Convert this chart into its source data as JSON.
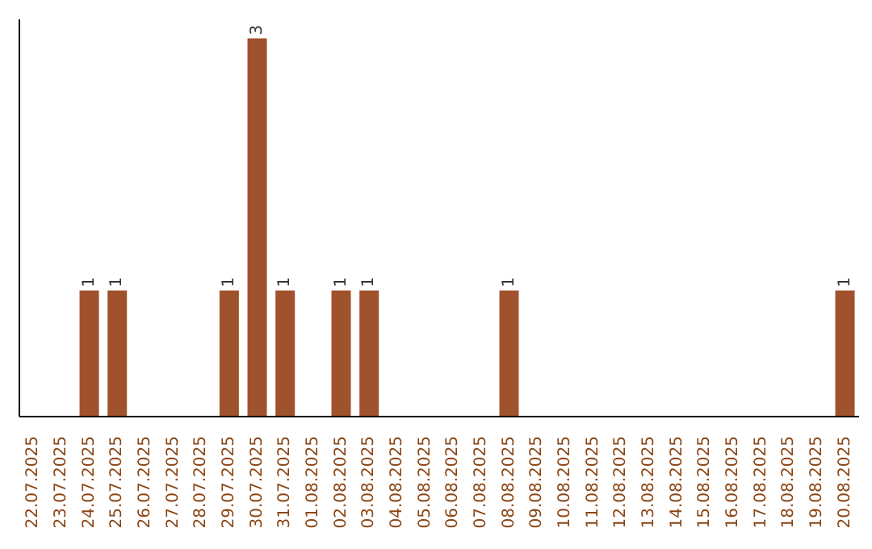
{
  "chart_data": {
    "type": "bar",
    "categories": [
      "22.07.2025",
      "23.07.2025",
      "24.07.2025",
      "25.07.2025",
      "26.07.2025",
      "27.07.2025",
      "28.07.2025",
      "29.07.2025",
      "30.07.2025",
      "31.07.2025",
      "01.08.2025",
      "02.08.2025",
      "03.08.2025",
      "04.08.2025",
      "05.08.2025",
      "06.08.2025",
      "07.08.2025",
      "08.08.2025",
      "09.08.2025",
      "10.08.2025",
      "11.08.2025",
      "12.08.2025",
      "13.08.2025",
      "14.08.2025",
      "15.08.2025",
      "16.08.2025",
      "17.08.2025",
      "18.08.2025",
      "19.08.2025",
      "20.08.2025"
    ],
    "values": [
      0,
      0,
      1,
      1,
      0,
      0,
      0,
      1,
      3,
      1,
      0,
      1,
      1,
      0,
      0,
      0,
      0,
      1,
      0,
      0,
      0,
      0,
      0,
      0,
      0,
      0,
      0,
      0,
      0,
      1
    ],
    "value_labels": [
      null,
      null,
      "1",
      "1",
      null,
      null,
      null,
      "1",
      "3",
      "1",
      null,
      "1",
      "1",
      null,
      null,
      null,
      null,
      "1",
      null,
      null,
      null,
      null,
      null,
      null,
      null,
      null,
      null,
      null,
      null,
      "1"
    ],
    "color": "#a0522d",
    "grid": false,
    "legend": false
  }
}
